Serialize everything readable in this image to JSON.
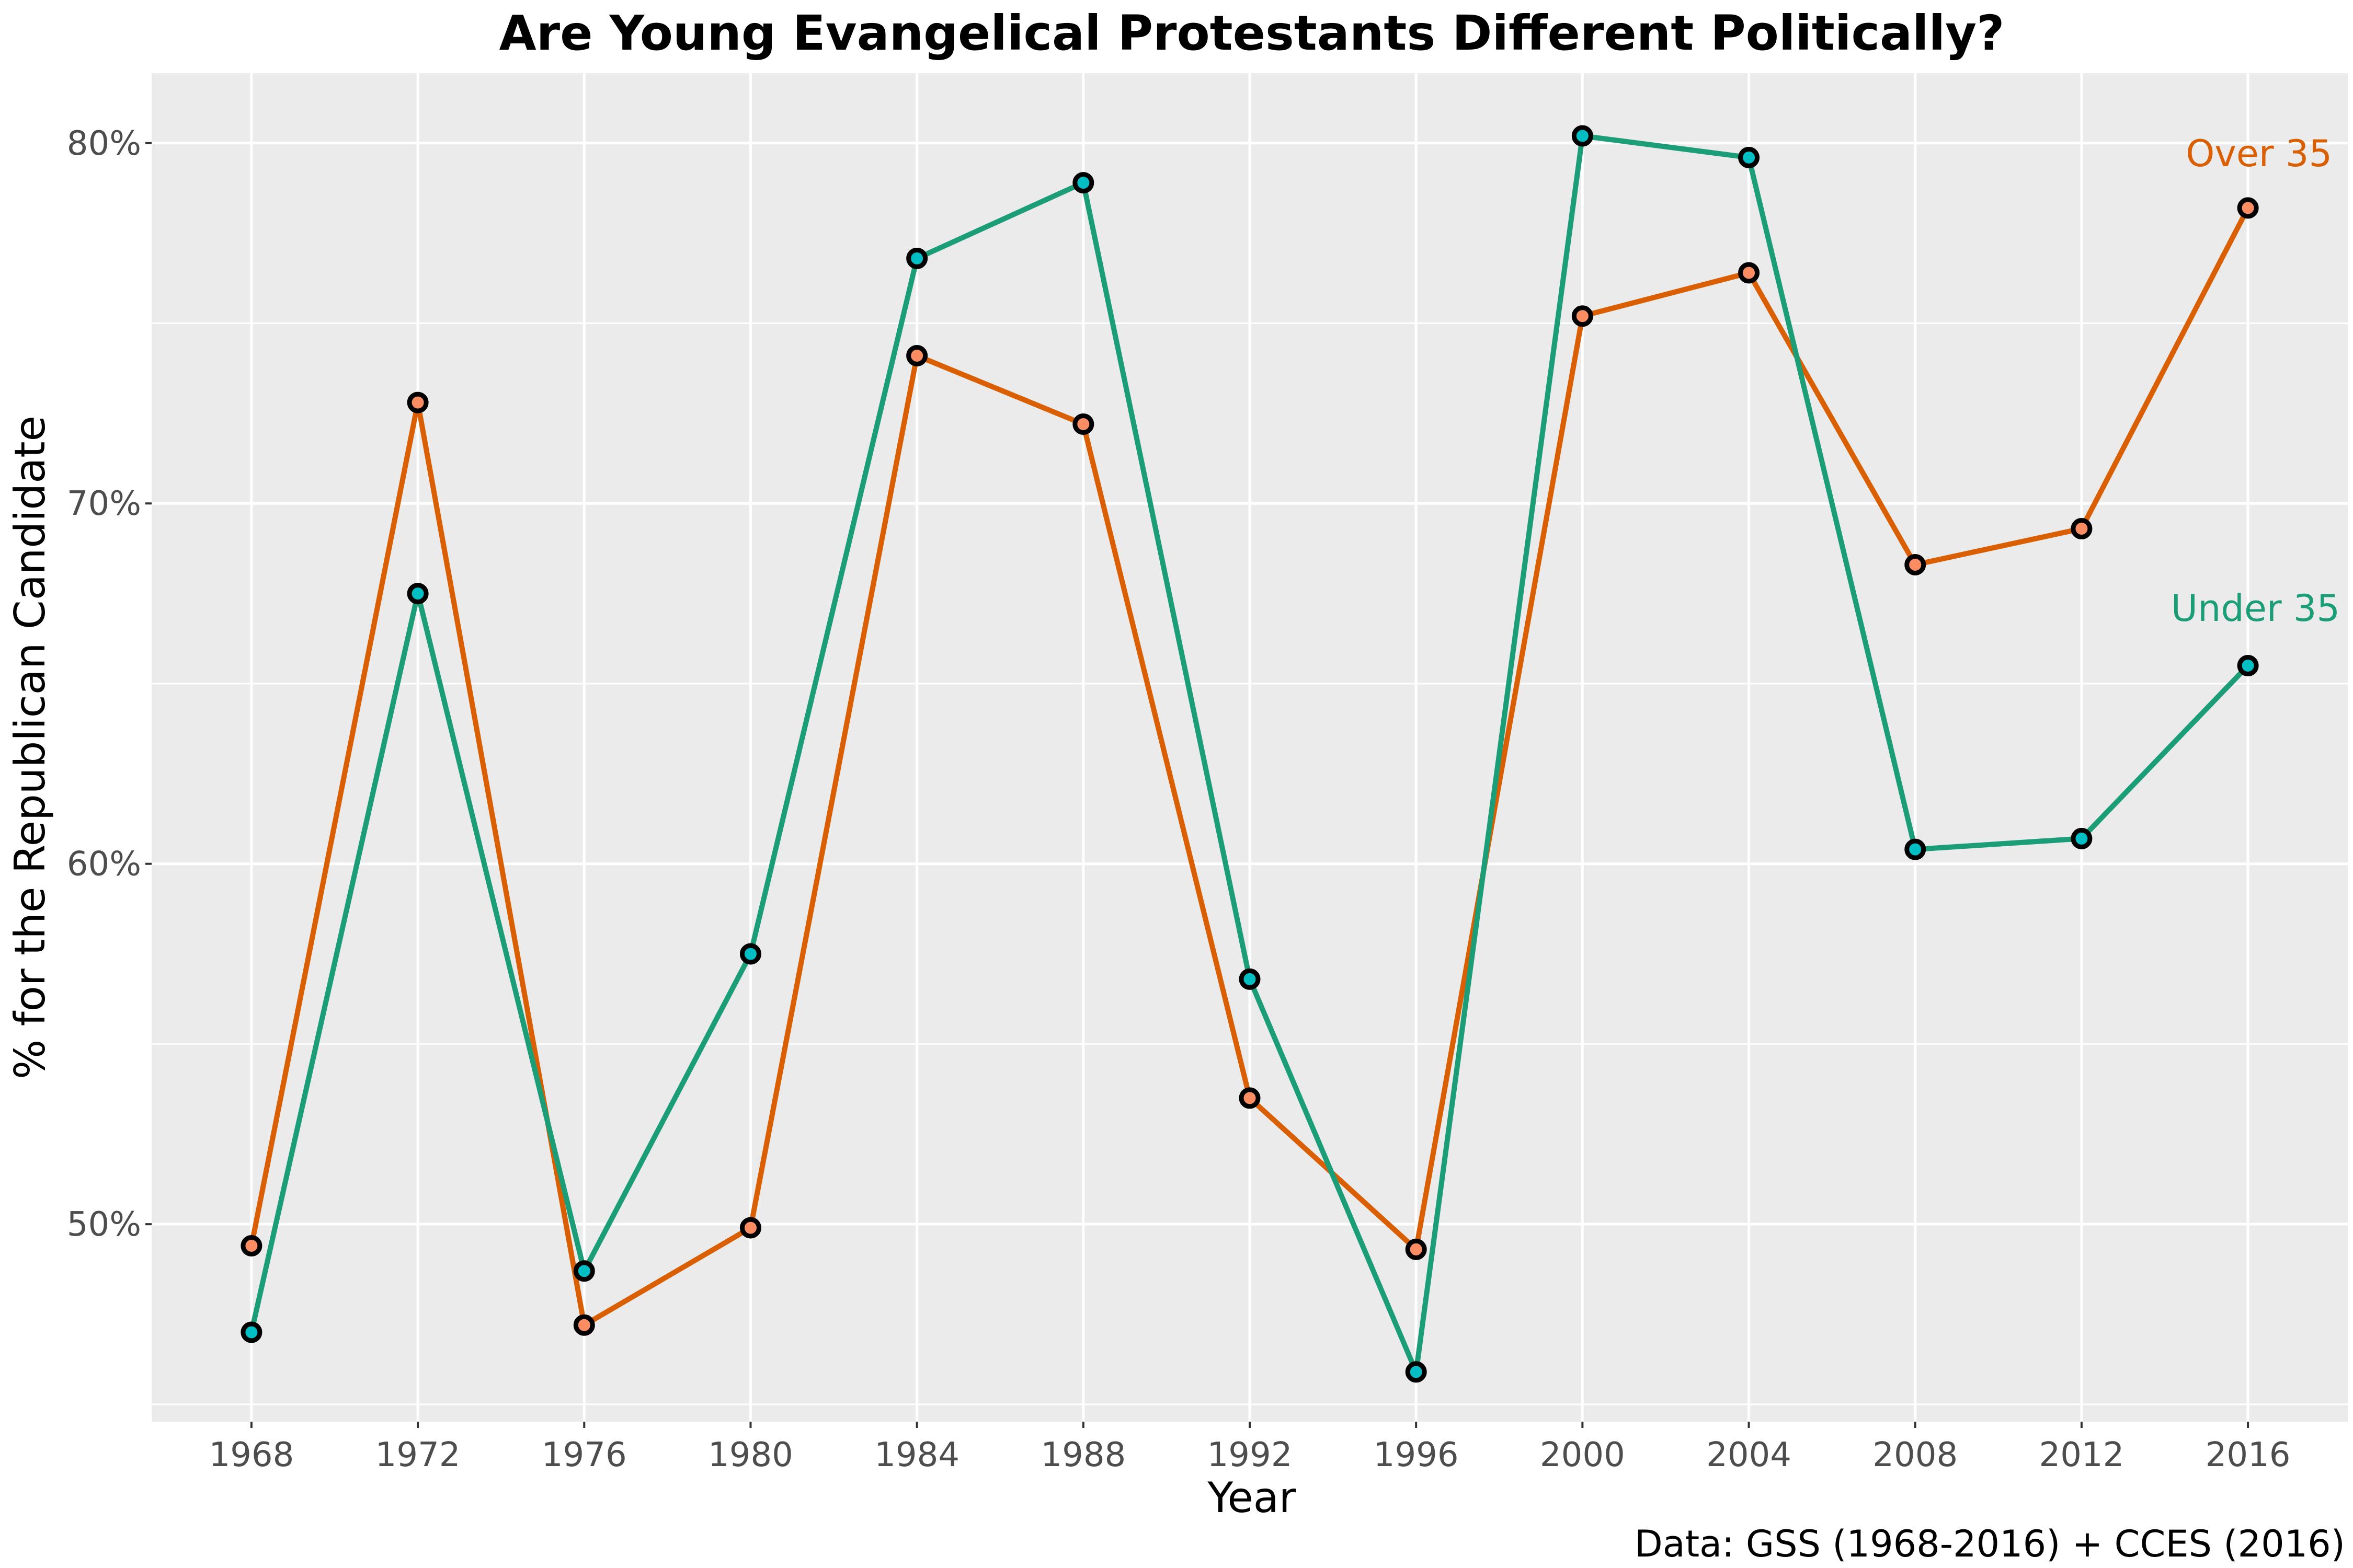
{
  "chart_data": {
    "type": "line",
    "title": "Are Young Evangelical Protestants Different Politically?",
    "xlabel": "Year",
    "ylabel": "% for the Republican Candidate",
    "caption": "Data: GSS (1968-2016) + CCES (2016)",
    "x": [
      1968,
      1972,
      1976,
      1980,
      1984,
      1988,
      1992,
      1996,
      2000,
      2004,
      2008,
      2012,
      2016
    ],
    "x_tick_labels": [
      "1968",
      "1972",
      "1976",
      "1980",
      "1984",
      "1988",
      "1992",
      "1996",
      "2000",
      "2004",
      "2008",
      "2012",
      "2016"
    ],
    "y_ticks": [
      0.5,
      0.6,
      0.7,
      0.8
    ],
    "y_tick_labels": [
      "50%",
      "60%",
      "70%",
      "80%"
    ],
    "xlim": [
      1965.6,
      2018.4
    ],
    "ylim": [
      0.4452,
      0.8194
    ],
    "grid": true,
    "legend": "direct labels at line ends",
    "series": [
      {
        "name": "Over 35",
        "color": "#d95f02",
        "marker_fill": "#fc8d62",
        "values": [
          0.494,
          0.728,
          0.472,
          0.499,
          0.741,
          0.722,
          0.535,
          0.493,
          0.752,
          0.764,
          0.683,
          0.693,
          0.782
        ]
      },
      {
        "name": "Under 35",
        "color": "#1b9e77",
        "marker_fill": "#00bfc4",
        "values": [
          0.47,
          0.675,
          0.487,
          0.575,
          0.768,
          0.789,
          0.568,
          0.459,
          0.802,
          0.796,
          0.604,
          0.607,
          0.655
        ]
      }
    ]
  }
}
